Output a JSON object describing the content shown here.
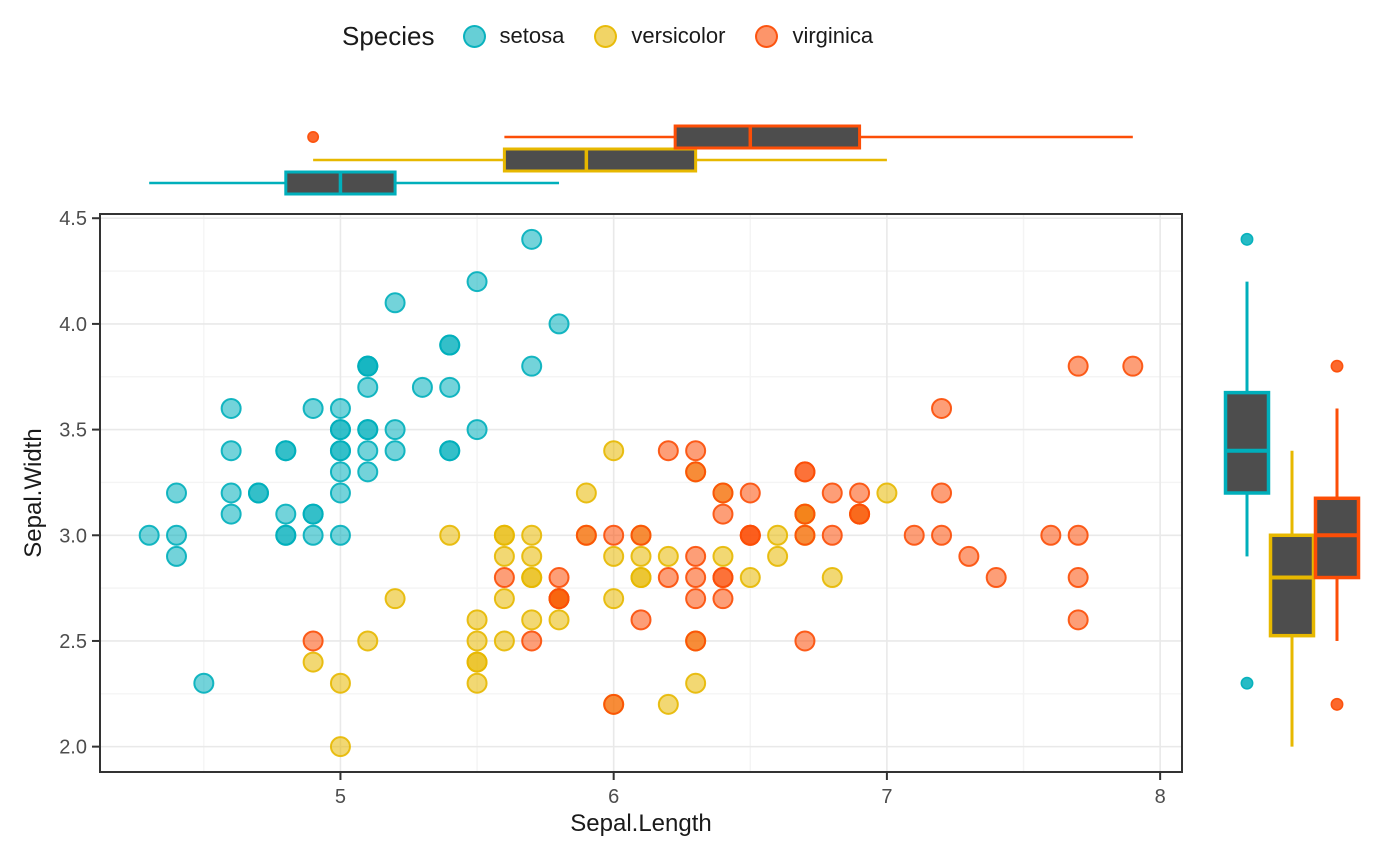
{
  "chart_data": {
    "type": "scatter",
    "title": "",
    "xlabel": "Sepal.Length",
    "ylabel": "Sepal.Width",
    "xlim": [
      4.12,
      8.08
    ],
    "ylim": [
      1.88,
      4.52
    ],
    "x_ticks": [
      5,
      6,
      7,
      8
    ],
    "x_tick_labels": [
      "5",
      "6",
      "7",
      "8"
    ],
    "x_minor_ticks": [
      4.5,
      5.5,
      6.5,
      7.5
    ],
    "y_ticks": [
      2.0,
      2.5,
      3.0,
      3.5,
      4.0,
      4.5
    ],
    "y_tick_labels": [
      "2.0",
      "2.5",
      "3.0",
      "3.5",
      "4.0",
      "4.5"
    ],
    "y_minor_ticks": [
      2.25,
      2.75,
      3.25,
      3.75,
      4.25
    ],
    "grid": true,
    "point_alpha": 0.6,
    "box_fill": "#4d4d4d",
    "legend": {
      "title": "Species",
      "position": "top"
    },
    "series": [
      {
        "name": "setosa",
        "color": "#00AFBB",
        "points": [
          [
            5.1,
            3.5
          ],
          [
            4.9,
            3.0
          ],
          [
            4.7,
            3.2
          ],
          [
            4.6,
            3.1
          ],
          [
            5.0,
            3.6
          ],
          [
            5.4,
            3.9
          ],
          [
            4.6,
            3.4
          ],
          [
            5.0,
            3.4
          ],
          [
            4.4,
            2.9
          ],
          [
            4.9,
            3.1
          ],
          [
            5.4,
            3.7
          ],
          [
            4.8,
            3.4
          ],
          [
            4.8,
            3.0
          ],
          [
            4.3,
            3.0
          ],
          [
            5.8,
            4.0
          ],
          [
            5.7,
            4.4
          ],
          [
            5.4,
            3.9
          ],
          [
            5.1,
            3.5
          ],
          [
            5.7,
            3.8
          ],
          [
            5.1,
            3.8
          ],
          [
            5.4,
            3.4
          ],
          [
            5.1,
            3.7
          ],
          [
            4.6,
            3.6
          ],
          [
            5.1,
            3.3
          ],
          [
            4.8,
            3.4
          ],
          [
            5.0,
            3.0
          ],
          [
            5.0,
            3.4
          ],
          [
            5.2,
            3.5
          ],
          [
            5.2,
            3.4
          ],
          [
            4.7,
            3.2
          ],
          [
            4.8,
            3.1
          ],
          [
            5.4,
            3.4
          ],
          [
            5.2,
            4.1
          ],
          [
            5.5,
            4.2
          ],
          [
            4.9,
            3.1
          ],
          [
            5.0,
            3.2
          ],
          [
            5.5,
            3.5
          ],
          [
            4.9,
            3.6
          ],
          [
            4.4,
            3.0
          ],
          [
            5.1,
            3.4
          ],
          [
            5.0,
            3.5
          ],
          [
            4.5,
            2.3
          ],
          [
            4.4,
            3.2
          ],
          [
            5.0,
            3.5
          ],
          [
            5.1,
            3.8
          ],
          [
            4.8,
            3.0
          ],
          [
            5.1,
            3.8
          ],
          [
            4.6,
            3.2
          ],
          [
            5.3,
            3.7
          ],
          [
            5.0,
            3.3
          ]
        ]
      },
      {
        "name": "versicolor",
        "color": "#E7B800",
        "points": [
          [
            7.0,
            3.2
          ],
          [
            6.4,
            3.2
          ],
          [
            6.9,
            3.1
          ],
          [
            5.5,
            2.3
          ],
          [
            6.5,
            2.8
          ],
          [
            5.7,
            2.8
          ],
          [
            6.3,
            3.3
          ],
          [
            4.9,
            2.4
          ],
          [
            6.6,
            2.9
          ],
          [
            5.2,
            2.7
          ],
          [
            5.0,
            2.0
          ],
          [
            5.9,
            3.0
          ],
          [
            6.0,
            2.2
          ],
          [
            6.1,
            2.9
          ],
          [
            5.6,
            2.9
          ],
          [
            6.7,
            3.1
          ],
          [
            5.6,
            3.0
          ],
          [
            5.8,
            2.7
          ],
          [
            6.2,
            2.2
          ],
          [
            5.6,
            2.5
          ],
          [
            5.9,
            3.2
          ],
          [
            6.1,
            2.8
          ],
          [
            6.3,
            2.5
          ],
          [
            6.1,
            2.8
          ],
          [
            6.4,
            2.9
          ],
          [
            6.6,
            3.0
          ],
          [
            6.8,
            2.8
          ],
          [
            6.7,
            3.0
          ],
          [
            6.0,
            2.9
          ],
          [
            5.7,
            2.6
          ],
          [
            5.5,
            2.4
          ],
          [
            5.5,
            2.4
          ],
          [
            5.8,
            2.7
          ],
          [
            6.0,
            2.7
          ],
          [
            5.4,
            3.0
          ],
          [
            6.0,
            3.4
          ],
          [
            6.7,
            3.1
          ],
          [
            6.3,
            2.3
          ],
          [
            5.6,
            3.0
          ],
          [
            5.5,
            2.5
          ],
          [
            5.5,
            2.6
          ],
          [
            6.1,
            3.0
          ],
          [
            5.8,
            2.6
          ],
          [
            5.0,
            2.3
          ],
          [
            5.6,
            2.7
          ],
          [
            5.7,
            3.0
          ],
          [
            5.7,
            2.9
          ],
          [
            6.2,
            2.9
          ],
          [
            5.1,
            2.5
          ],
          [
            5.7,
            2.8
          ]
        ]
      },
      {
        "name": "virginica",
        "color": "#FC4E07",
        "points": [
          [
            6.3,
            3.3
          ],
          [
            5.8,
            2.7
          ],
          [
            7.1,
            3.0
          ],
          [
            6.3,
            2.9
          ],
          [
            6.5,
            3.0
          ],
          [
            7.6,
            3.0
          ],
          [
            4.9,
            2.5
          ],
          [
            7.3,
            2.9
          ],
          [
            6.7,
            2.5
          ],
          [
            7.2,
            3.6
          ],
          [
            6.5,
            3.2
          ],
          [
            6.4,
            2.7
          ],
          [
            6.8,
            3.0
          ],
          [
            5.7,
            2.5
          ],
          [
            5.8,
            2.8
          ],
          [
            6.4,
            3.2
          ],
          [
            6.5,
            3.0
          ],
          [
            7.7,
            3.8
          ],
          [
            7.7,
            2.6
          ],
          [
            6.0,
            2.2
          ],
          [
            6.9,
            3.2
          ],
          [
            5.6,
            2.8
          ],
          [
            7.7,
            2.8
          ],
          [
            6.3,
            2.7
          ],
          [
            6.7,
            3.3
          ],
          [
            7.2,
            3.2
          ],
          [
            6.2,
            2.8
          ],
          [
            6.1,
            3.0
          ],
          [
            6.4,
            2.8
          ],
          [
            7.2,
            3.0
          ],
          [
            7.4,
            2.8
          ],
          [
            7.9,
            3.8
          ],
          [
            6.4,
            2.8
          ],
          [
            6.3,
            2.8
          ],
          [
            6.1,
            2.6
          ],
          [
            7.7,
            3.0
          ],
          [
            6.3,
            3.4
          ],
          [
            6.4,
            3.1
          ],
          [
            6.0,
            3.0
          ],
          [
            6.9,
            3.1
          ],
          [
            6.7,
            3.1
          ],
          [
            6.9,
            3.1
          ],
          [
            5.8,
            2.7
          ],
          [
            6.8,
            3.2
          ],
          [
            6.7,
            3.3
          ],
          [
            6.7,
            3.0
          ],
          [
            6.3,
            2.5
          ],
          [
            6.5,
            3.0
          ],
          [
            6.2,
            3.4
          ],
          [
            5.9,
            3.0
          ]
        ]
      }
    ],
    "marginal_boxplots": {
      "top": {
        "variable": "Sepal.Length",
        "groups": [
          {
            "name": "setosa",
            "lo": 4.3,
            "q1": 4.8,
            "med": 5.0,
            "q3": 5.2,
            "hi": 5.8,
            "outliers": []
          },
          {
            "name": "versicolor",
            "lo": 4.9,
            "q1": 5.6,
            "med": 5.9,
            "q3": 6.3,
            "hi": 7.0,
            "outliers": []
          },
          {
            "name": "virginica",
            "lo": 5.6,
            "q1": 6.225,
            "med": 6.5,
            "q3": 6.9,
            "hi": 7.9,
            "outliers": [
              4.9
            ]
          }
        ]
      },
      "right": {
        "variable": "Sepal.Width",
        "groups": [
          {
            "name": "setosa",
            "lo": 2.9,
            "q1": 3.2,
            "med": 3.4,
            "q3": 3.675,
            "hi": 4.2,
            "outliers": [
              2.3,
              4.4
            ]
          },
          {
            "name": "versicolor",
            "lo": 2.0,
            "q1": 2.525,
            "med": 2.8,
            "q3": 3.0,
            "hi": 3.4,
            "outliers": []
          },
          {
            "name": "virginica",
            "lo": 2.5,
            "q1": 2.8,
            "med": 3.0,
            "q3": 3.175,
            "hi": 3.6,
            "outliers": [
              2.2,
              3.8
            ]
          }
        ]
      }
    }
  }
}
